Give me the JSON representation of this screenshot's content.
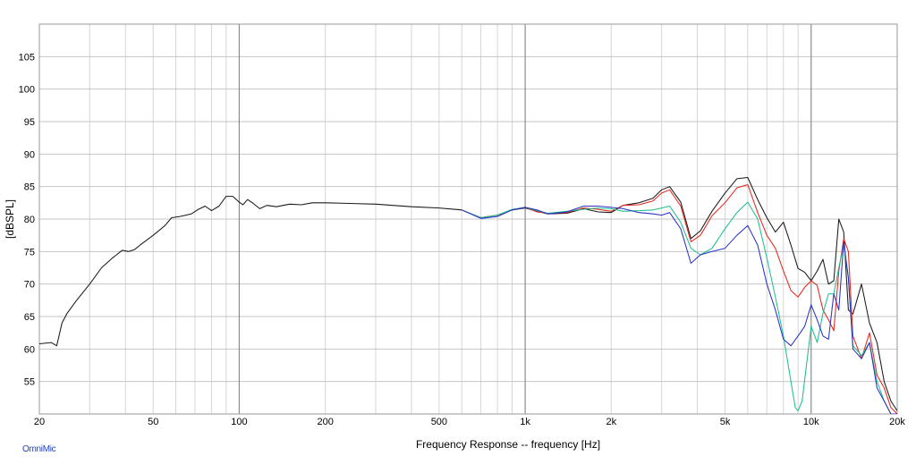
{
  "footer": {
    "brand": "OmniMic"
  },
  "chart_data": {
    "type": "line",
    "title": "",
    "xlabel": "Frequency Response -- frequency [Hz]",
    "ylabel": "[dBSPL]",
    "x_scale": "log",
    "xlim": [
      20,
      20000
    ],
    "ylim": [
      50,
      110
    ],
    "x_ticks": [
      {
        "value": 20,
        "label": "20"
      },
      {
        "value": 50,
        "label": "50"
      },
      {
        "value": 100,
        "label": "100"
      },
      {
        "value": 200,
        "label": "200"
      },
      {
        "value": 500,
        "label": "500"
      },
      {
        "value": 1000,
        "label": "1k"
      },
      {
        "value": 2000,
        "label": "2k"
      },
      {
        "value": 5000,
        "label": "5k"
      },
      {
        "value": 10000,
        "label": "10k"
      },
      {
        "value": 20000,
        "label": "20k"
      }
    ],
    "y_ticks": [
      55,
      60,
      65,
      70,
      75,
      80,
      85,
      90,
      95,
      100,
      105
    ],
    "grid": true,
    "legend": "none",
    "series": [
      {
        "color": "#1a1a1a",
        "x": [
          20,
          22,
          23,
          24,
          25,
          27,
          30,
          33,
          36,
          39,
          41,
          43,
          45,
          50,
          55,
          58,
          62,
          68,
          72,
          76,
          80,
          85,
          90,
          95,
          100,
          103,
          107,
          112,
          118,
          125,
          135,
          150,
          165,
          180,
          200,
          250,
          300,
          400,
          500,
          600,
          700,
          800,
          900,
          1000,
          1100,
          1200,
          1400,
          1600,
          1800,
          2000,
          2200,
          2500,
          2800,
          3000,
          3200,
          3500,
          3800,
          4100,
          4500,
          5000,
          5500,
          6000,
          6500,
          7000,
          7500,
          8000,
          8500,
          9000,
          9500,
          10000,
          10500,
          11000,
          11500,
          12000,
          12500,
          13000,
          13500,
          14000,
          15000,
          16000,
          17000,
          18000,
          19000,
          20000
        ],
        "y": [
          60.8,
          61.0,
          60.5,
          64.0,
          65.5,
          67.5,
          70.0,
          72.5,
          74.0,
          75.2,
          75.0,
          75.3,
          76.0,
          77.5,
          79.0,
          80.2,
          80.4,
          80.8,
          81.5,
          82.0,
          81.3,
          82.0,
          83.5,
          83.5,
          82.6,
          82.2,
          83.0,
          82.4,
          81.6,
          82.1,
          81.9,
          82.3,
          82.2,
          82.5,
          82.5,
          82.4,
          82.3,
          81.9,
          81.7,
          81.4,
          80.2,
          80.6,
          81.4,
          81.7,
          81.2,
          80.8,
          80.9,
          81.6,
          81.1,
          81.0,
          82.1,
          82.5,
          83.2,
          84.5,
          85.0,
          82.6,
          77.0,
          78.2,
          81.2,
          84.0,
          86.2,
          86.4,
          83.0,
          80.2,
          78.0,
          79.5,
          76.0,
          72.4,
          71.8,
          70.5,
          72.0,
          73.8,
          70.0,
          70.5,
          80.0,
          78.0,
          66.0,
          65.4,
          70.0,
          64.0,
          61.0,
          55.0,
          52.0,
          50.5
        ]
      },
      {
        "color": "#e8271c",
        "x": [
          600,
          700,
          800,
          900,
          1000,
          1100,
          1200,
          1400,
          1600,
          1800,
          2000,
          2200,
          2500,
          2800,
          3000,
          3200,
          3500,
          3800,
          4100,
          4500,
          5000,
          5500,
          6000,
          6500,
          7000,
          7500,
          8000,
          8500,
          9000,
          9500,
          10000,
          10500,
          11000,
          11500,
          12000,
          12500,
          13000,
          13500,
          14000,
          15000,
          16000,
          17000,
          18000,
          19000,
          20000
        ],
        "y": [
          81.4,
          80.2,
          80.6,
          81.4,
          81.8,
          81.1,
          80.9,
          81.0,
          81.7,
          81.5,
          81.2,
          82.1,
          82.2,
          82.8,
          84.0,
          84.5,
          82.0,
          76.5,
          77.5,
          80.5,
          82.5,
          84.8,
          85.3,
          81.0,
          77.5,
          75.5,
          72.0,
          69.0,
          68.0,
          69.5,
          70.5,
          69.8,
          66.0,
          64.5,
          62.8,
          72.0,
          77.0,
          75.0,
          62.0,
          58.5,
          62.5,
          56.0,
          54.0,
          51.0,
          50.0
        ]
      },
      {
        "color": "#1fbf8f",
        "x": [
          600,
          700,
          800,
          900,
          1000,
          1100,
          1200,
          1400,
          1600,
          1800,
          2000,
          2200,
          2500,
          2800,
          3000,
          3200,
          3500,
          3800,
          4100,
          4500,
          5000,
          5500,
          6000,
          6500,
          7000,
          7500,
          8000,
          8500,
          8800,
          9000,
          9300,
          9600,
          10000,
          10500,
          11000,
          11500,
          12000,
          12500,
          13000,
          13500,
          14000,
          15000,
          16000,
          17000,
          18000,
          19000,
          20000
        ],
        "y": [
          81.4,
          80.2,
          80.6,
          81.5,
          81.8,
          81.3,
          80.9,
          81.2,
          81.5,
          81.7,
          81.6,
          81.2,
          81.3,
          81.4,
          81.7,
          82.0,
          79.5,
          75.5,
          74.5,
          75.5,
          78.5,
          81.0,
          82.6,
          80.0,
          74.0,
          68.0,
          62.0,
          55.0,
          51.0,
          50.5,
          52.0,
          57.0,
          63.5,
          61.0,
          65.5,
          68.5,
          68.5,
          72.5,
          76.0,
          71.0,
          60.5,
          59.0,
          61.0,
          55.0,
          52.0,
          50.0,
          49.5
        ]
      },
      {
        "color": "#2a34c6",
        "x": [
          600,
          700,
          800,
          900,
          1000,
          1100,
          1200,
          1400,
          1600,
          1800,
          2000,
          2200,
          2500,
          2800,
          3000,
          3200,
          3500,
          3800,
          4100,
          4500,
          5000,
          5500,
          6000,
          6500,
          7000,
          7500,
          8000,
          8500,
          9000,
          9500,
          10000,
          10500,
          11000,
          11500,
          12000,
          12500,
          13000,
          13500,
          14000,
          15000,
          16000,
          17000,
          18000,
          19000,
          20000
        ],
        "y": [
          81.4,
          80.1,
          80.4,
          81.4,
          81.8,
          81.4,
          80.8,
          81.1,
          82.0,
          82.0,
          81.8,
          81.6,
          81.0,
          80.8,
          80.6,
          81.0,
          78.5,
          73.2,
          74.5,
          75.0,
          75.5,
          77.5,
          79.0,
          76.0,
          70.0,
          66.0,
          61.5,
          60.5,
          62.0,
          63.5,
          66.8,
          64.5,
          62.0,
          61.5,
          68.5,
          66.0,
          76.5,
          71.0,
          60.0,
          58.5,
          61.0,
          54.0,
          52.0,
          50.0,
          50.0
        ]
      }
    ]
  }
}
